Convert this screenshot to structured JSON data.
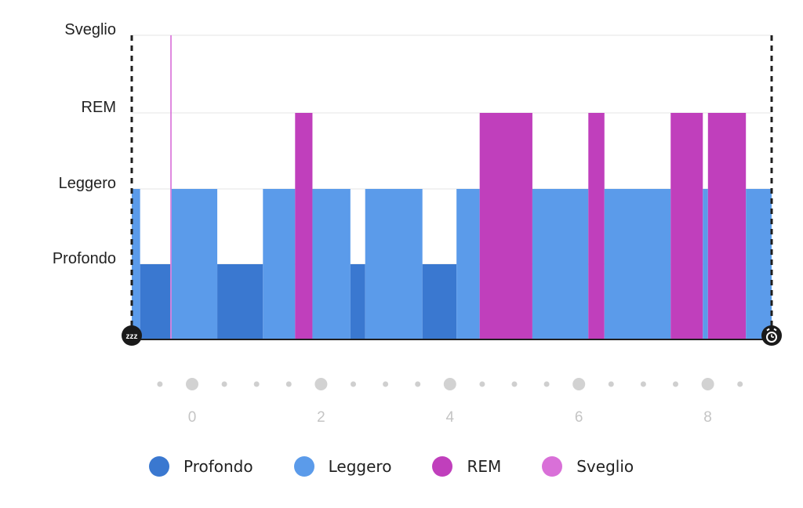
{
  "chart_data": {
    "type": "bar",
    "title": "",
    "xlabel": "",
    "ylabel": "",
    "y_categories": [
      "Profondo",
      "Leggero",
      "REM",
      "Sveglio"
    ],
    "x_ticks": [
      0,
      2,
      4,
      6,
      8
    ],
    "xlim": [
      -0.95,
      9.0
    ],
    "grid": true,
    "legend_position": "bottom",
    "colors": {
      "Profondo": "#3a78d0",
      "Leggero": "#5b9bea",
      "REM": "#c03fbc",
      "Sveglio": "#d970d8"
    },
    "segments": [
      {
        "stage": "Leggero",
        "start": -0.95,
        "end": -0.82
      },
      {
        "stage": "Profondo",
        "start": -0.82,
        "end": -0.35
      },
      {
        "stage": "Sveglio",
        "start": -0.35,
        "end": -0.33
      },
      {
        "stage": "Leggero",
        "start": -0.33,
        "end": 0.38
      },
      {
        "stage": "Profondo",
        "start": 0.38,
        "end": 1.09
      },
      {
        "stage": "Leggero",
        "start": 1.09,
        "end": 1.59
      },
      {
        "stage": "REM",
        "start": 1.59,
        "end": 1.86
      },
      {
        "stage": "Leggero",
        "start": 1.86,
        "end": 2.45
      },
      {
        "stage": "Profondo",
        "start": 2.45,
        "end": 2.68
      },
      {
        "stage": "Leggero",
        "start": 2.68,
        "end": 3.57
      },
      {
        "stage": "Profondo",
        "start": 3.57,
        "end": 4.1
      },
      {
        "stage": "Leggero",
        "start": 4.1,
        "end": 4.46
      },
      {
        "stage": "REM",
        "start": 4.46,
        "end": 5.28
      },
      {
        "stage": "Leggero",
        "start": 5.28,
        "end": 6.15
      },
      {
        "stage": "REM",
        "start": 6.15,
        "end": 6.4
      },
      {
        "stage": "Leggero",
        "start": 6.4,
        "end": 7.43
      },
      {
        "stage": "REM",
        "start": 7.43,
        "end": 7.93
      },
      {
        "stage": "Leggero",
        "start": 7.93,
        "end": 8.01
      },
      {
        "stage": "REM",
        "start": 8.01,
        "end": 8.6
      },
      {
        "stage": "Leggero",
        "start": 8.6,
        "end": 9.0
      }
    ]
  },
  "markers": {
    "start_icon": "sleep-zzz-icon",
    "end_icon": "alarm-clock-icon",
    "start_text": "zzz"
  },
  "legend": [
    {
      "label": "Profondo",
      "color": "#3a78d0"
    },
    {
      "label": "Leggero",
      "color": "#5b9bea"
    },
    {
      "label": "REM",
      "color": "#c03fbc"
    },
    {
      "label": "Sveglio",
      "color": "#d970d8"
    }
  ]
}
